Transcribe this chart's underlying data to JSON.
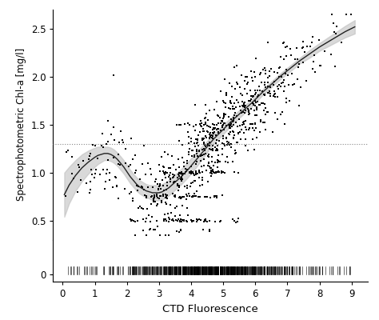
{
  "xlabel": "CTD Fluorescence",
  "ylabel": "Spectrophotometric Chl-a [mg/l]",
  "xlim": [
    -0.3,
    9.5
  ],
  "ylim": [
    0.3,
    2.7
  ],
  "xticks": [
    0,
    1,
    2,
    3,
    4,
    5,
    6,
    7,
    8,
    9
  ],
  "yticks": [
    0.5,
    1.0,
    1.5,
    2.0,
    2.5
  ],
  "hline_y": 1.3,
  "gam_x": [
    0.05,
    0.2,
    0.4,
    0.6,
    0.8,
    1.0,
    1.1,
    1.2,
    1.3,
    1.4,
    1.5,
    1.6,
    1.7,
    1.8,
    1.9,
    2.0,
    2.1,
    2.2,
    2.3,
    2.4,
    2.5,
    2.6,
    2.7,
    2.8,
    2.9,
    3.0,
    3.1,
    3.2,
    3.3,
    3.5,
    3.7,
    3.9,
    4.1,
    4.3,
    4.5,
    4.7,
    5.0,
    5.3,
    5.6,
    5.9,
    6.2,
    6.5,
    6.8,
    7.1,
    7.4,
    7.7,
    8.0,
    8.4,
    8.8,
    9.1
  ],
  "gam_y": [
    0.77,
    0.87,
    0.97,
    1.05,
    1.11,
    1.16,
    1.18,
    1.19,
    1.2,
    1.2,
    1.19,
    1.17,
    1.14,
    1.1,
    1.06,
    1.01,
    0.96,
    0.92,
    0.88,
    0.85,
    0.83,
    0.81,
    0.8,
    0.79,
    0.79,
    0.79,
    0.8,
    0.82,
    0.84,
    0.9,
    0.96,
    1.03,
    1.11,
    1.19,
    1.27,
    1.35,
    1.45,
    1.55,
    1.64,
    1.73,
    1.83,
    1.92,
    2.01,
    2.09,
    2.17,
    2.24,
    2.31,
    2.39,
    2.47,
    2.52
  ],
  "gam_upper": [
    1.0,
    1.06,
    1.13,
    1.19,
    1.23,
    1.26,
    1.27,
    1.27,
    1.27,
    1.27,
    1.26,
    1.24,
    1.21,
    1.17,
    1.13,
    1.08,
    1.03,
    0.99,
    0.95,
    0.92,
    0.9,
    0.88,
    0.87,
    0.87,
    0.87,
    0.87,
    0.88,
    0.9,
    0.92,
    0.98,
    1.04,
    1.11,
    1.19,
    1.26,
    1.33,
    1.4,
    1.5,
    1.59,
    1.68,
    1.77,
    1.86,
    1.95,
    2.04,
    2.12,
    2.2,
    2.28,
    2.35,
    2.44,
    2.53,
    2.59
  ],
  "gam_lower": [
    0.54,
    0.68,
    0.81,
    0.91,
    0.99,
    1.06,
    1.09,
    1.11,
    1.13,
    1.13,
    1.12,
    1.1,
    1.07,
    1.03,
    0.99,
    0.94,
    0.89,
    0.85,
    0.81,
    0.78,
    0.76,
    0.74,
    0.73,
    0.71,
    0.71,
    0.71,
    0.72,
    0.74,
    0.76,
    0.82,
    0.88,
    0.95,
    1.03,
    1.12,
    1.21,
    1.3,
    1.4,
    1.51,
    1.6,
    1.69,
    1.8,
    1.89,
    1.98,
    2.06,
    2.14,
    2.2,
    2.27,
    2.34,
    2.41,
    2.45
  ],
  "point_color": "black",
  "point_size": 2.5,
  "line_color": "#222222",
  "band_color": "#bbbbbb",
  "hline_color": "#888888",
  "rug_color": "black",
  "background_color": "#ffffff",
  "rug_xlim": [
    -0.3,
    9.5
  ],
  "rug_ylim": [
    -0.15,
    0.15
  ],
  "rug_ytick": [
    0
  ],
  "seed": 12345
}
